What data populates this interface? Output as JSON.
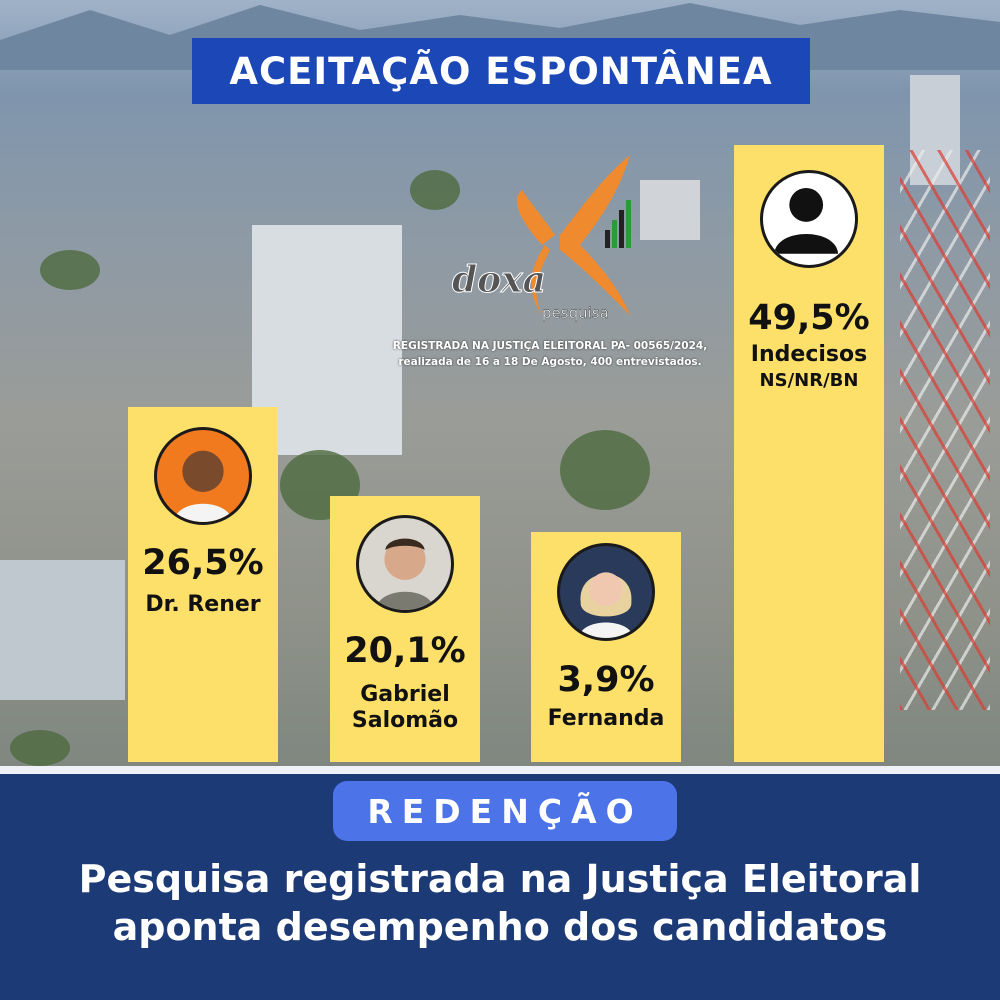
{
  "title": "ACEITAÇÃO ESPONTÂNEA",
  "logo": {
    "brand": "doxa",
    "sub": "pesquisa"
  },
  "registration": {
    "line1": "REGISTRADA NA JUSTIÇA  ELEITORAL PA- 00565/2024,",
    "line2": "realizada de 16 a 18 De Agosto, 400 entrevistados."
  },
  "chart_data": {
    "type": "bar",
    "categories": [
      "Dr. Rener",
      "Gabriel Salomão",
      "Fernanda",
      "Indecisos NS/NR/BN"
    ],
    "values": [
      26.5,
      20.1,
      3.9,
      49.5
    ],
    "labels": [
      "26,5%",
      "20,1%",
      "3,9%",
      "49,5%"
    ],
    "bar_color": "#fde06a"
  },
  "candidates": [
    {
      "value_label": "26,5%",
      "name_line1": "Dr. Rener",
      "name_line2": ""
    },
    {
      "value_label": "20,1%",
      "name_line1": "Gabriel",
      "name_line2": "Salomão"
    },
    {
      "value_label": "3,9%",
      "name_line1": "Fernanda",
      "name_line2": ""
    },
    {
      "value_label": "49,5%",
      "name_line1": "Indecisos",
      "name_line2": "NS/NR/BN"
    }
  ],
  "city": "REDENÇÃO",
  "headline": {
    "line1": "Pesquisa registrada na Justiça Eleitoral",
    "line2": "aponta desempenho  dos candidatos"
  },
  "colors": {
    "title_bg": "#1c47b6",
    "bottom_bg": "#1c3a75",
    "city_badge": "#4c74e8",
    "logo_orange": "#f08a2e"
  }
}
